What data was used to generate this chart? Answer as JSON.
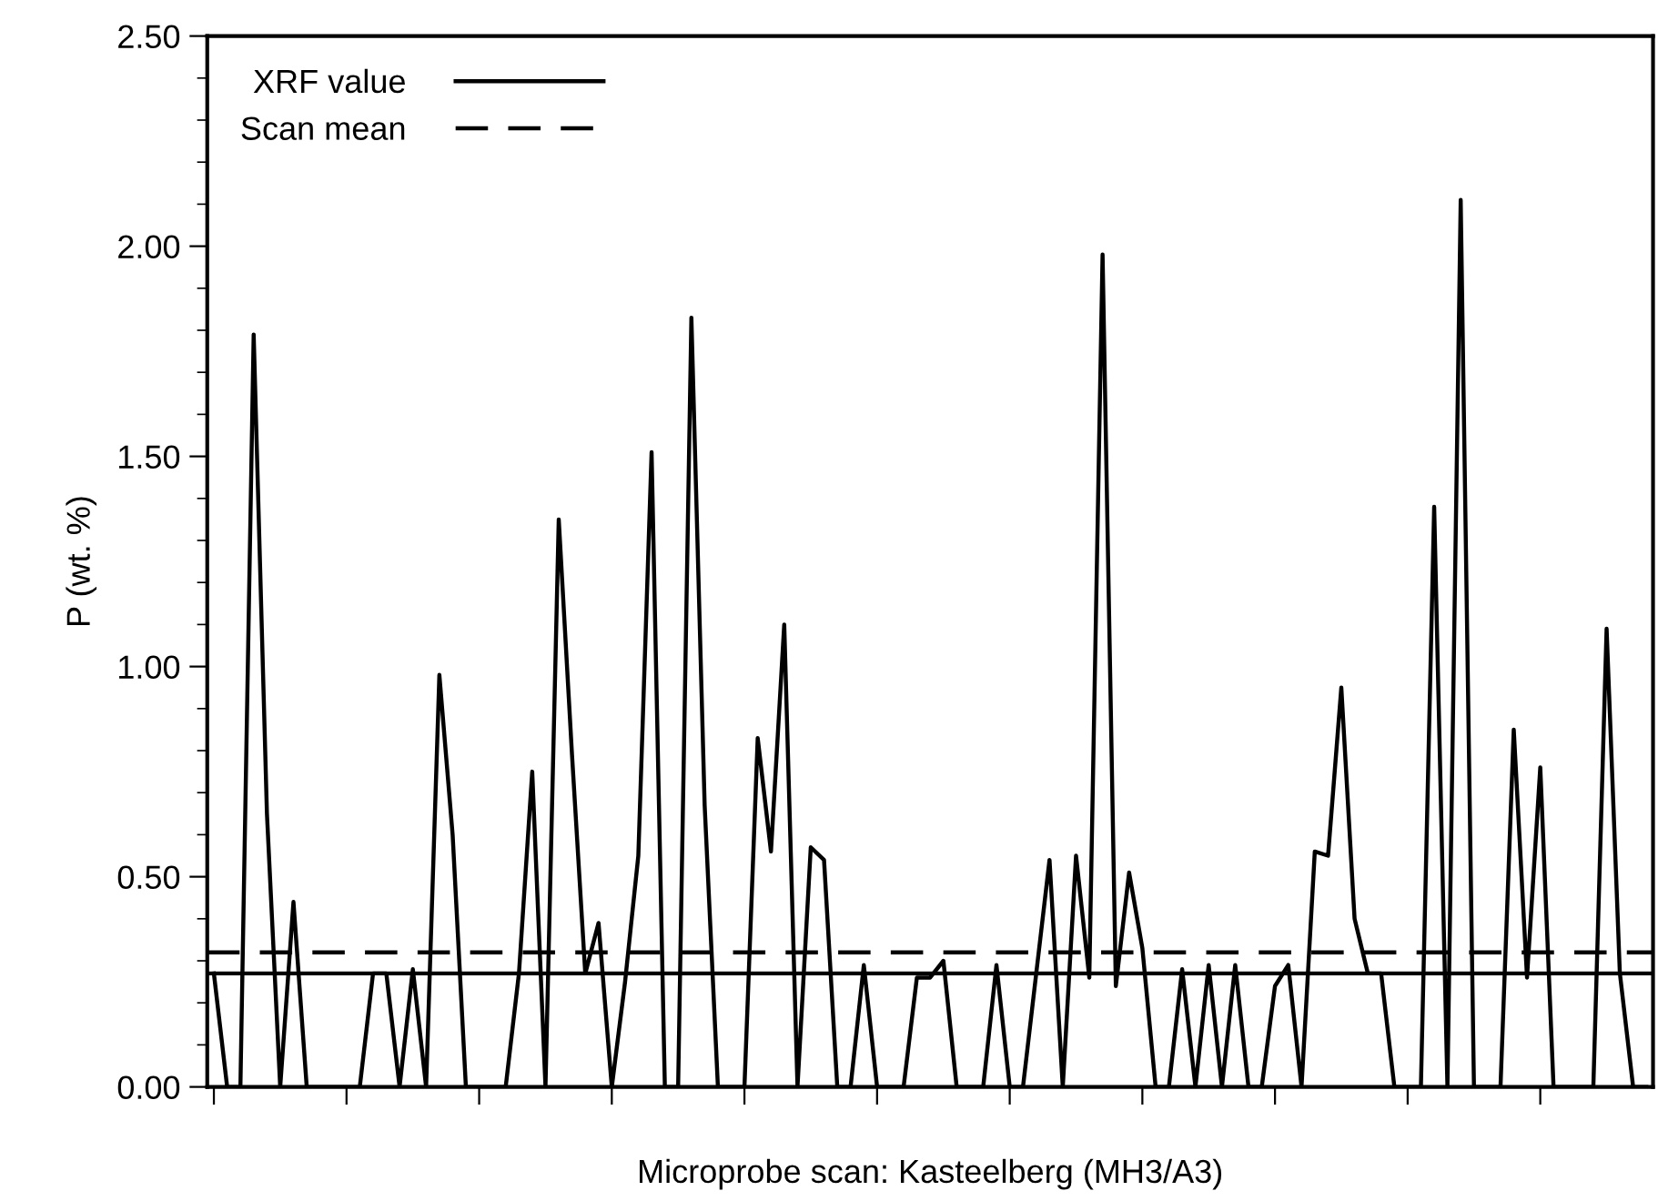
{
  "chart_data": {
    "type": "line",
    "xlabel": "Microprobe scan: Kasteelberg (MH3/A3)",
    "ylabel": "P (wt. %)",
    "categories": [
      null,
      null,
      null,
      null,
      null,
      null,
      null,
      null,
      null,
      null,
      null,
      null,
      null,
      null,
      null,
      null,
      null,
      null,
      null,
      null,
      null,
      null,
      null,
      null,
      null,
      null,
      null,
      null,
      null,
      null,
      null,
      null,
      null,
      null,
      null,
      null,
      null,
      null,
      null,
      null,
      null,
      null,
      null,
      null,
      null,
      null,
      null,
      null,
      null,
      null,
      null,
      null,
      null,
      null,
      null,
      null,
      null,
      null,
      null,
      null,
      null,
      null,
      null,
      null,
      null,
      null,
      null,
      null,
      null,
      null,
      null,
      null,
      null,
      null,
      null,
      null,
      null,
      null,
      null,
      null,
      null,
      null,
      null,
      null,
      null,
      null,
      null,
      null,
      null,
      null,
      null,
      null,
      null,
      null,
      null,
      null,
      null,
      null,
      null,
      null,
      null,
      null,
      null,
      null,
      null,
      null,
      null,
      null,
      null
    ],
    "series": [
      {
        "color": "#000000",
        "values": [
          0.27,
          0,
          0,
          1.79,
          0.65,
          0,
          0.44,
          0,
          0,
          0,
          0,
          0,
          0.27,
          0.27,
          0,
          0.28,
          0,
          0.98,
          0.6,
          0,
          0,
          0,
          0,
          0.27,
          0.75,
          0,
          1.35,
          0.79,
          0.27,
          0.39,
          0,
          0.25,
          0.55,
          1.51,
          0,
          0,
          1.83,
          0.67,
          0,
          0,
          0,
          0.83,
          0.56,
          1.1,
          0,
          0.57,
          0.54,
          0,
          0,
          0.29,
          0,
          0,
          0,
          0.26,
          0.26,
          0.3,
          0,
          0,
          0,
          0.29,
          0,
          0,
          0.27,
          0.54,
          0,
          0.55,
          0.26,
          1.98,
          0.24,
          0.51,
          0.33,
          0,
          0,
          0.28,
          0,
          0.29,
          0,
          0.29,
          0,
          0,
          0.24,
          0.29,
          0,
          0.56,
          0.55,
          0.95,
          0.4,
          0.27,
          0.27,
          0,
          0,
          0,
          1.38,
          0,
          2.11,
          0,
          0,
          0,
          0.85,
          0.26,
          0.76,
          0,
          0,
          0,
          0,
          1.09,
          0.27,
          0,
          0
        ]
      }
    ],
    "ylim": [
      0,
      2.5
    ],
    "yticks": [
      {
        "value": 0,
        "label": "0.00"
      },
      {
        "value": 0.5,
        "label": "0.50"
      },
      {
        "value": 1,
        "label": "1.00"
      },
      {
        "value": 1.5,
        "label": "1.50"
      },
      {
        "value": 2,
        "label": "2.00"
      },
      {
        "value": 2.5,
        "label": "2.50"
      }
    ],
    "ref_lines": [
      {
        "axis": "y",
        "value": 0.27,
        "label": "XRF value",
        "line_style": "solid",
        "color": "#000000"
      },
      {
        "axis": "y",
        "value": 0.32,
        "label": "Scan mean",
        "line_style": "dashed",
        "color": "#000000"
      }
    ],
    "legend": "top left",
    "grid": false,
    "marker": "none",
    "line_style": "solid"
  }
}
